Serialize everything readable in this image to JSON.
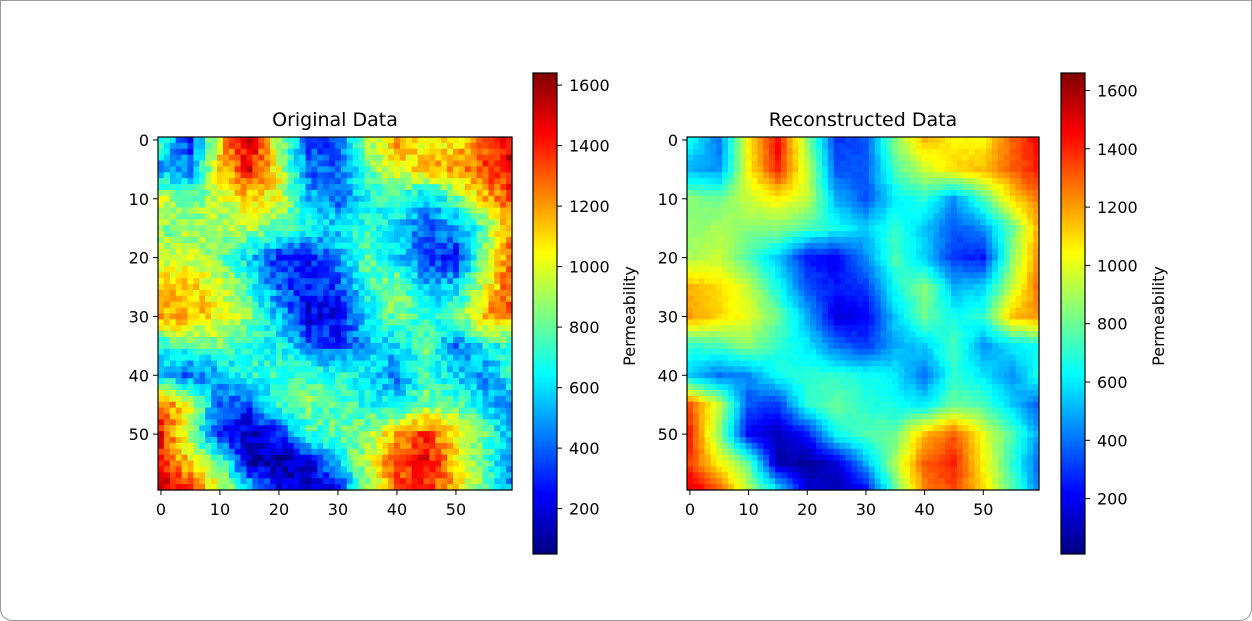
{
  "chart_data": [
    {
      "type": "heatmap",
      "title": "Original Data",
      "xlabel": "",
      "ylabel": "",
      "xlim": [
        -0.5,
        59.5
      ],
      "ylim": [
        59.5,
        -0.5
      ],
      "x_ticks": [
        0,
        10,
        20,
        30,
        40,
        50
      ],
      "y_ticks": [
        0,
        10,
        20,
        30,
        40,
        50
      ],
      "grid_size": [
        60,
        60
      ],
      "colormap": "jet",
      "colorbar": {
        "label": "Permeability",
        "range": [
          50,
          1640
        ],
        "ticks": [
          200,
          400,
          600,
          800,
          1000,
          1200,
          1400,
          1600
        ]
      },
      "control_points": {
        "x": [
          0,
          5,
          10,
          15,
          20,
          25,
          30,
          35,
          40,
          45,
          50,
          55,
          59
        ],
        "y": [
          0,
          5,
          10,
          15,
          20,
          25,
          30,
          35,
          40,
          45,
          50,
          55,
          59
        ],
        "values": [
          [
            700,
            300,
            1100,
            1550,
            900,
            350,
            400,
            900,
            1200,
            1050,
            1050,
            1300,
            1500
          ],
          [
            500,
            450,
            1100,
            1450,
            1000,
            400,
            400,
            800,
            1000,
            1150,
            1200,
            1350,
            1450
          ],
          [
            950,
            800,
            950,
            1100,
            1000,
            550,
            400,
            650,
            750,
            500,
            800,
            1150,
            1300
          ],
          [
            850,
            900,
            900,
            900,
            800,
            700,
            600,
            750,
            600,
            400,
            500,
            800,
            1200
          ],
          [
            900,
            950,
            800,
            600,
            300,
            250,
            500,
            800,
            600,
            350,
            250,
            900,
            1250
          ],
          [
            1150,
            1100,
            1000,
            700,
            400,
            300,
            350,
            700,
            900,
            550,
            600,
            1000,
            1300
          ],
          [
            1200,
            1150,
            1050,
            850,
            550,
            200,
            250,
            600,
            850,
            700,
            750,
            1200,
            1250
          ],
          [
            700,
            750,
            850,
            700,
            650,
            450,
            300,
            550,
            600,
            800,
            450,
            650,
            700
          ],
          [
            550,
            400,
            500,
            700,
            750,
            750,
            700,
            650,
            450,
            750,
            600,
            450,
            700
          ],
          [
            1300,
            1000,
            400,
            350,
            750,
            850,
            750,
            700,
            600,
            850,
            800,
            600,
            450
          ],
          [
            1450,
            850,
            250,
            150,
            300,
            700,
            800,
            850,
            1200,
            1350,
            1050,
            800,
            550
          ],
          [
            1400,
            1100,
            850,
            150,
            100,
            200,
            550,
            950,
            1350,
            1450,
            1100,
            750,
            450
          ],
          [
            1550,
            1350,
            950,
            600,
            200,
            150,
            300,
            850,
            1300,
            1400,
            1150,
            800,
            500
          ]
        ]
      }
    },
    {
      "type": "heatmap",
      "title": "Reconstructed Data",
      "xlabel": "",
      "ylabel": "",
      "xlim": [
        -0.5,
        59.5
      ],
      "ylim": [
        59.5,
        -0.5
      ],
      "x_ticks": [
        0,
        10,
        20,
        30,
        40,
        50
      ],
      "y_ticks": [
        0,
        10,
        20,
        30,
        40,
        50
      ],
      "grid_size": [
        60,
        60
      ],
      "colormap": "jet",
      "colorbar": {
        "label": "Permeability",
        "range": [
          10,
          1660
        ],
        "ticks": [
          200,
          400,
          600,
          800,
          1000,
          1200,
          1400,
          1600
        ]
      },
      "control_points": {
        "x": [
          0,
          5,
          10,
          15,
          20,
          25,
          30,
          35,
          40,
          45,
          50,
          55,
          59
        ],
        "y": [
          0,
          5,
          10,
          15,
          20,
          25,
          30,
          35,
          40,
          45,
          50,
          55,
          59
        ],
        "values": [
          [
            650,
            400,
            1050,
            1450,
            850,
            300,
            350,
            850,
            1150,
            1050,
            1050,
            1300,
            1450
          ],
          [
            500,
            450,
            1050,
            1400,
            950,
            350,
            350,
            750,
            950,
            1100,
            1150,
            1300,
            1400
          ],
          [
            850,
            800,
            950,
            1050,
            950,
            500,
            350,
            600,
            700,
            450,
            750,
            1100,
            1250
          ],
          [
            850,
            900,
            850,
            850,
            750,
            650,
            550,
            700,
            550,
            350,
            450,
            800,
            1150
          ],
          [
            900,
            950,
            750,
            550,
            250,
            200,
            450,
            750,
            550,
            300,
            250,
            850,
            1200
          ],
          [
            1150,
            1100,
            950,
            650,
            350,
            250,
            300,
            650,
            850,
            500,
            550,
            950,
            1250
          ],
          [
            1200,
            1100,
            1000,
            800,
            500,
            150,
            200,
            550,
            800,
            650,
            700,
            1150,
            1200
          ],
          [
            700,
            750,
            850,
            700,
            600,
            400,
            300,
            500,
            550,
            750,
            450,
            600,
            650
          ],
          [
            550,
            400,
            450,
            650,
            700,
            700,
            650,
            600,
            400,
            700,
            600,
            450,
            650
          ],
          [
            1300,
            950,
            350,
            300,
            700,
            800,
            700,
            650,
            600,
            800,
            750,
            550,
            400
          ],
          [
            1400,
            850,
            200,
            100,
            250,
            650,
            750,
            800,
            1150,
            1300,
            1000,
            750,
            500
          ],
          [
            1350,
            1050,
            800,
            100,
            50,
            150,
            500,
            900,
            1300,
            1400,
            1050,
            700,
            400
          ],
          [
            1500,
            1300,
            900,
            550,
            150,
            100,
            250,
            800,
            1250,
            1350,
            1100,
            750,
            450
          ]
        ]
      }
    }
  ]
}
